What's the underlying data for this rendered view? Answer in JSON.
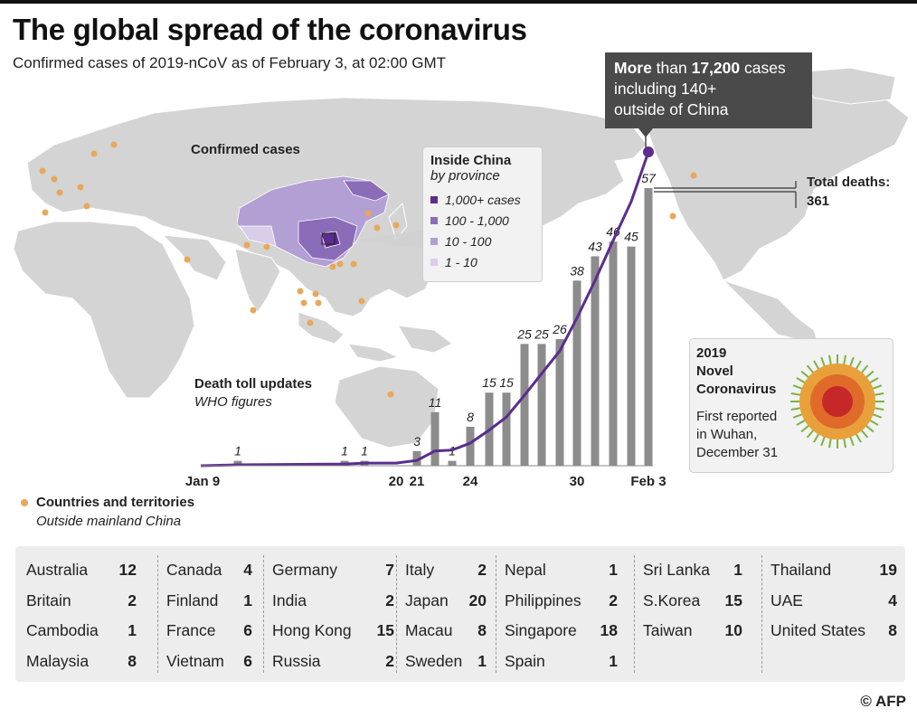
{
  "title": "The global spread of the coronavirus",
  "subtitle": "Confirmed cases of 2019-nCoV as of February 3, at 02:00 GMT",
  "confirmed_cases_label": "Confirmed cases",
  "callout": {
    "line1_prefix": "More",
    "line1_mid": " than ",
    "line1_num": "17,200",
    "line1_suffix": " cases",
    "line2": "including 140+",
    "line3": "outside of China"
  },
  "china_legend": {
    "title": "Inside China",
    "subtitle": "by province",
    "items": [
      {
        "label": "1,000+ cases",
        "color": "#5b2d8e"
      },
      {
        "label": "100 - 1,000",
        "color": "#8a6cb8"
      },
      {
        "label": "10 - 100",
        "color": "#b29fd4"
      },
      {
        "label": "1 - 10",
        "color": "#d9cdea"
      }
    ]
  },
  "total_deaths": {
    "label": "Total deaths:",
    "value": "361"
  },
  "death_toll": {
    "title": "Death toll updates",
    "subtitle": "WHO figures"
  },
  "countries_legend": {
    "title": "Countries and territories",
    "subtitle": "Outside mainland China"
  },
  "virus_box": {
    "title_lines": [
      "2019",
      "Novel",
      "Coronavirus"
    ],
    "desc_lines": [
      "First reported",
      "in Wuhan,",
      "December 31"
    ]
  },
  "chart_data": {
    "type": "bar",
    "title": "Death toll updates",
    "subtitle": "WHO figures",
    "x_tick_labels": [
      "Jan 9",
      "20",
      "21",
      "24",
      "30",
      "Feb 3"
    ],
    "categories": [
      "Jan 9",
      "Jan 11",
      "Jan 17",
      "Jan 18",
      "Jan 20",
      "Jan 21",
      "Jan 22",
      "Jan 23",
      "Jan 24",
      "Jan 25",
      "Jan 26",
      "Jan 27",
      "Jan 28",
      "Jan 29",
      "Jan 30",
      "Jan 31",
      "Feb 1",
      "Feb 2",
      "Feb 3"
    ],
    "series": [
      {
        "values": [
          0,
          1,
          1,
          1,
          0,
          3,
          11,
          1,
          8,
          15,
          15,
          25,
          25,
          26,
          38,
          43,
          46,
          45,
          57
        ]
      }
    ],
    "labeled_values": [
      null,
      "1",
      "1",
      "1",
      null,
      "3",
      "11",
      "1",
      "8",
      "15",
      "15",
      "25",
      "25",
      "26",
      "38",
      "43",
      "46",
      "45",
      "57"
    ],
    "cumulative_line_total": 361,
    "ylim": [
      0,
      60
    ],
    "bar_color": "#8c8c8c",
    "line_color": "#5b2d8e"
  },
  "countries": [
    [
      [
        "Australia",
        "12"
      ],
      [
        "Britain",
        "2"
      ],
      [
        "Cambodia",
        "1"
      ],
      [
        "Malaysia",
        "8"
      ]
    ],
    [
      [
        "Canada",
        "4"
      ],
      [
        "Finland",
        "1"
      ],
      [
        "France",
        "6"
      ],
      [
        "Vietnam",
        "6"
      ]
    ],
    [
      [
        "Germany",
        "7"
      ],
      [
        "India",
        "2"
      ],
      [
        "Hong Kong",
        "15"
      ],
      [
        "Russia",
        "2"
      ]
    ],
    [
      [
        "Italy",
        "2"
      ],
      [
        "Japan",
        "20"
      ],
      [
        "Macau",
        "8"
      ],
      [
        "Sweden",
        "1"
      ]
    ],
    [
      [
        "Nepal",
        "1"
      ],
      [
        "Philippines",
        "2"
      ],
      [
        "Singapore",
        "18"
      ],
      [
        "Spain",
        "1"
      ]
    ],
    [
      [
        "Sri Lanka",
        "1"
      ],
      [
        "S.Korea",
        "15"
      ],
      [
        "Taiwan",
        "10"
      ]
    ],
    [
      [
        "Thailand",
        "19"
      ],
      [
        "UAE",
        "4"
      ],
      [
        "United States",
        "8"
      ]
    ]
  ],
  "credit": "© AFP",
  "colors": {
    "land": "#d4d4d4",
    "dot": "#e8a85a",
    "purple": "#5b2d8e"
  }
}
